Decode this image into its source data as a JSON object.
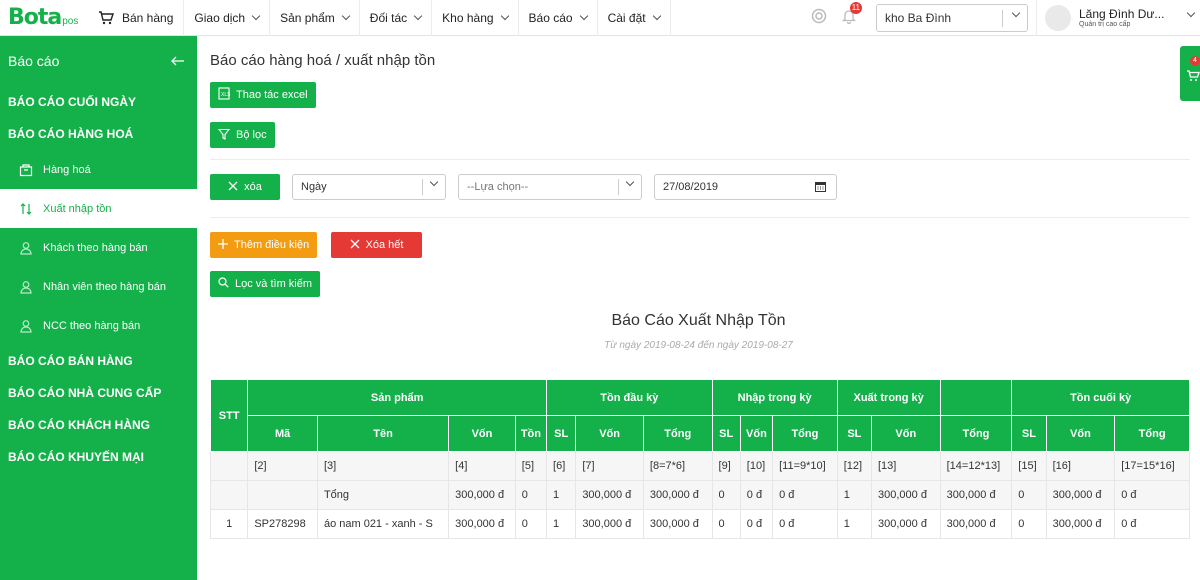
{
  "brand": {
    "logo_text": "Bota",
    "logo_sub": "pos"
  },
  "nav": {
    "items": [
      {
        "label": "Bán hàng"
      },
      {
        "label": "Giao dịch"
      },
      {
        "label": "Sản phẩm"
      },
      {
        "label": "Đối tác"
      },
      {
        "label": "Kho hàng"
      },
      {
        "label": "Báo cáo"
      },
      {
        "label": "Cài đặt"
      }
    ],
    "notification_count": "11",
    "store": "kho Ba Đình",
    "user_name": "Lăng Đình Dư...",
    "user_role": "Quản trị cao cấp"
  },
  "sidebar": {
    "title": "Báo cáo",
    "sections": {
      "end_of_day": "BÁO CÁO CUỐI NGÀY",
      "goods": "BÁO CÁO HÀNG HOÁ",
      "sales": "BÁO CÁO BÁN HÀNG",
      "suppliers": "BÁO CÁO NHÀ CUNG CẤP",
      "customers": "BÁO CÁO KHÁCH HÀNG",
      "promotions": "BÁO CÁO KHUYẾN MẠI"
    },
    "items": [
      {
        "label": "Hàng hoá",
        "icon": "box-icon"
      },
      {
        "label": "Xuất nhập tồn",
        "icon": "transfer-icon"
      },
      {
        "label": "Khách theo hàng bán",
        "icon": "user-icon"
      },
      {
        "label": "Nhân viên theo hàng bán",
        "icon": "user-icon"
      },
      {
        "label": "NCC theo hàng bán",
        "icon": "user-icon"
      }
    ]
  },
  "main": {
    "title": "Báo cáo hàng hoá / xuất nhập tồn",
    "excel_button": "Thao tác excel",
    "filter_button": "Bộ lọc",
    "clear_button": "xóa",
    "period_select": "Ngày",
    "option_select": "--Lựa chọn--",
    "date_value": "27/08/2019",
    "add_condition_button": "Thêm điều kiện",
    "clear_all_button": "Xóa hết",
    "search_button": "Lọc và tìm kiếm"
  },
  "report": {
    "title": "Báo Cáo Xuất Nhập Tồn",
    "subtitle": "Từ ngày 2019-08-24 đến ngày 2019-08-27",
    "group_headers": {
      "stt": "STT",
      "product": "Sản phẩm",
      "opening": "Tồn đầu kỳ",
      "import": "Nhập trong kỳ",
      "export": "Xuất trong kỳ",
      "closing": "Tồn cuối kỳ"
    },
    "sub_headers": [
      "Mã",
      "Tên",
      "Vốn",
      "Tồn",
      "SL",
      "Vốn",
      "Tổng",
      "SL",
      "Vốn",
      "Tổng",
      "SL",
      "Vốn",
      "Tổng",
      "SL",
      "Vốn",
      "Tổng"
    ],
    "index_row": [
      "",
      "[2]",
      "[3]",
      "[4]",
      "[5]",
      "[6]",
      "[7]",
      "[8=7*6]",
      "[9]",
      "[10]",
      "[11=9*10]",
      "[12]",
      "[13]",
      "[14=12*13]",
      "[15]",
      "[16]",
      "[17=15*16]"
    ],
    "total_row": [
      "",
      "",
      "Tổng",
      "300,000 đ",
      "0",
      "1",
      "300,000 đ",
      "300,000 đ",
      "0",
      "0 đ",
      "0 đ",
      "1",
      "300,000 đ",
      "300,000 đ",
      "0",
      "300,000 đ",
      "0 đ"
    ],
    "rows": [
      [
        "1",
        "SP278298",
        "áo nam 021 - xanh - S",
        "300,000 đ",
        "0",
        "1",
        "300,000 đ",
        "300,000 đ",
        "0",
        "0 đ",
        "0 đ",
        "1",
        "300,000 đ",
        "300,000 đ",
        "0",
        "300,000 đ",
        "0 đ"
      ]
    ]
  },
  "cart_float": {
    "count": "4"
  },
  "colors": {
    "brand_green": "#14b14a",
    "danger_red": "#e53935",
    "warning_orange": "#f39c12"
  }
}
